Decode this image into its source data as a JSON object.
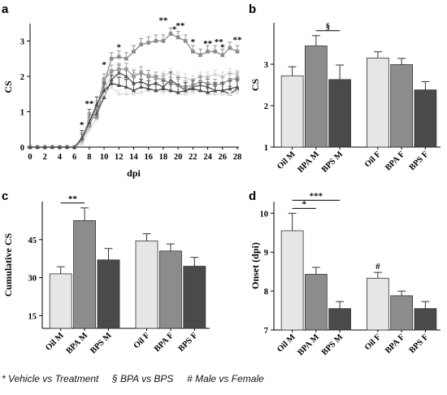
{
  "chart_data": [
    {
      "panel": "a",
      "type": "line",
      "xlabel": "dpi",
      "ylabel": "CS",
      "xlim": [
        0,
        28
      ],
      "ylim": [
        0,
        3.4
      ],
      "xticks": [
        "0",
        "2",
        "4",
        "6",
        "8",
        "10",
        "12",
        "14",
        "16",
        "18",
        "20",
        "22",
        "24",
        "26",
        "28"
      ],
      "yticks": [
        "0",
        "1",
        "2",
        "3"
      ],
      "x": [
        0,
        1,
        2,
        3,
        4,
        5,
        6,
        7,
        8,
        9,
        10,
        11,
        12,
        13,
        14,
        15,
        16,
        17,
        18,
        19,
        20,
        21,
        22,
        23,
        24,
        25,
        26,
        27,
        28
      ],
      "series": [
        {
          "values": [
            0,
            0,
            0,
            0,
            0,
            0,
            0,
            0.1,
            0.5,
            0.8,
            1.6,
            2.05,
            2.0,
            1.9,
            2.1,
            2.05,
            2.05,
            2.0,
            2.0,
            2.1,
            2.0,
            1.95,
            1.9,
            2.0,
            2.0,
            2.05,
            2.0,
            2.1,
            2.05
          ],
          "color": "#d4d4d4",
          "marker": "circle"
        },
        {
          "values": [
            0,
            0,
            0,
            0,
            0,
            0,
            0,
            0.2,
            0.8,
            0.85,
            1.8,
            2.5,
            2.55,
            2.5,
            2.7,
            2.9,
            2.95,
            3.0,
            3.0,
            3.2,
            3.1,
            3.0,
            2.7,
            2.6,
            2.7,
            2.7,
            2.6,
            2.8,
            2.7
          ],
          "color": "#8a8a8a",
          "marker": "square"
        },
        {
          "values": [
            0,
            0,
            0,
            0,
            0,
            0,
            0,
            0.2,
            0.85,
            0.95,
            1.4,
            1.9,
            2.1,
            2.0,
            1.8,
            1.85,
            1.75,
            1.8,
            1.7,
            1.9,
            1.75,
            1.6,
            1.7,
            1.75,
            1.7,
            1.6,
            1.6,
            1.5,
            1.65
          ],
          "color": "#555555",
          "marker": "triangle"
        },
        {
          "values": [
            0,
            0,
            0,
            0,
            0,
            0,
            0,
            0.3,
            0.8,
            1.2,
            1.5,
            1.7,
            1.5,
            1.5,
            1.5,
            1.55,
            1.6,
            1.6,
            1.55,
            1.6,
            1.5,
            1.5,
            1.55,
            1.6,
            1.5,
            1.5,
            1.5,
            1.5,
            1.55
          ],
          "color": "#e0e0e0",
          "marker": "circle"
        },
        {
          "values": [
            0,
            0,
            0,
            0,
            0,
            0,
            0,
            0.2,
            0.6,
            1.1,
            1.9,
            2.15,
            2.2,
            2.2,
            2.0,
            2.1,
            2.0,
            1.95,
            1.9,
            1.8,
            1.75,
            1.7,
            1.75,
            1.85,
            1.8,
            1.75,
            1.8,
            1.9,
            1.95
          ],
          "color": "#999999",
          "marker": "square"
        },
        {
          "values": [
            0,
            0,
            0,
            0,
            0,
            0,
            0,
            0.25,
            0.7,
            1.2,
            1.6,
            1.8,
            1.75,
            1.7,
            1.6,
            1.7,
            1.65,
            1.6,
            1.65,
            1.6,
            1.55,
            1.6,
            1.65,
            1.6,
            1.55,
            1.6,
            1.6,
            1.65,
            1.7
          ],
          "color": "#4a4a4a",
          "marker": "triangle"
        }
      ],
      "annotations": [
        {
          "x": 7,
          "y": 0.55,
          "text": "*"
        },
        {
          "x": 8,
          "y": 1.15,
          "text": "**"
        },
        {
          "x": 10,
          "y": 2.25,
          "text": "*"
        },
        {
          "x": 12,
          "y": 2.75,
          "text": "*"
        },
        {
          "x": 18,
          "y": 3.5,
          "text": "**"
        },
        {
          "x": 19.5,
          "y": 3.25,
          "text": "*"
        },
        {
          "x": 20.3,
          "y": 3.35,
          "text": "**"
        },
        {
          "x": 22,
          "y": 2.9,
          "text": "*"
        },
        {
          "x": 24,
          "y": 2.85,
          "text": "**"
        },
        {
          "x": 25.5,
          "y": 2.9,
          "text": "**"
        },
        {
          "x": 26,
          "y": 2.75,
          "text": "*"
        },
        {
          "x": 28,
          "y": 2.95,
          "text": "**"
        }
      ]
    },
    {
      "panel": "b",
      "type": "bar",
      "ylabel": "CS",
      "ylim": [
        1,
        4
      ],
      "yticks": [
        "1",
        "2",
        "3"
      ],
      "categories": [
        "Oil M",
        "BPA M",
        "BPS M",
        "Oil F",
        "BPA F",
        "BPS F"
      ],
      "values": [
        2.72,
        3.44,
        2.63,
        3.15,
        2.99,
        2.38
      ],
      "errors": [
        0.22,
        0.25,
        0.35,
        0.15,
        0.15,
        0.2
      ],
      "colors": [
        "#e6e6e6",
        "#8c8c8c",
        "#4a4a4a",
        "#e6e6e6",
        "#8c8c8c",
        "#4a4a4a"
      ],
      "brackets": [
        {
          "from": 1,
          "to": 2,
          "text": "§"
        }
      ]
    },
    {
      "panel": "c",
      "type": "bar",
      "ylabel": "Cumulative CS",
      "ylim": [
        10,
        60
      ],
      "yticks": [
        "15",
        "30",
        "45"
      ],
      "categories": [
        "Oil M",
        "BPA M",
        "BPS M",
        "Oil F",
        "BPA F",
        "BPS F"
      ],
      "values": [
        31.5,
        52.5,
        37.0,
        44.5,
        40.5,
        34.5
      ],
      "errors": [
        2.8,
        5.0,
        4.5,
        2.8,
        2.8,
        3.5
      ],
      "colors": [
        "#e6e6e6",
        "#8c8c8c",
        "#4a4a4a",
        "#e6e6e6",
        "#8c8c8c",
        "#4a4a4a"
      ],
      "brackets": [
        {
          "from": 0,
          "to": 1,
          "text": "**"
        }
      ]
    },
    {
      "panel": "d",
      "type": "bar",
      "ylabel": "Onset (dpi)",
      "ylim": [
        7,
        10.3
      ],
      "yticks": [
        "7",
        "8",
        "9",
        "10"
      ],
      "categories": [
        "Oil M",
        "BPA M",
        "BPS M",
        "Oil F",
        "BPA F",
        "BPS F"
      ],
      "values": [
        9.55,
        8.43,
        7.55,
        8.33,
        7.88,
        7.55
      ],
      "errors": [
        0.45,
        0.18,
        0.18,
        0.15,
        0.12,
        0.18
      ],
      "colors": [
        "#e6e6e6",
        "#8c8c8c",
        "#4a4a4a",
        "#e6e6e6",
        "#8c8c8c",
        "#4a4a4a"
      ],
      "brackets": [
        {
          "from": 0,
          "to": 1,
          "text": "*"
        },
        {
          "from": 0,
          "to": 2,
          "text": "***"
        }
      ],
      "marks": [
        {
          "index": 3,
          "text": "#"
        }
      ]
    }
  ],
  "footer": "* Vehicle vs Treatment     § BPA vs BPS     # Male vs Female"
}
